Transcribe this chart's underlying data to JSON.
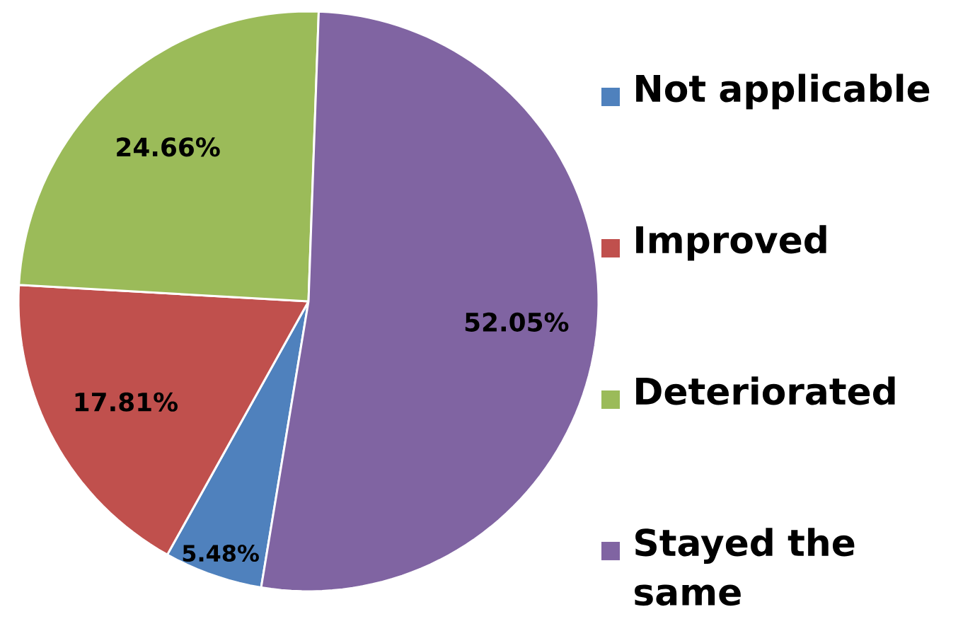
{
  "chart_data": {
    "type": "pie",
    "categories": [
      "Not applicable",
      "Improved",
      "Deteriorated",
      "Stayed the same"
    ],
    "values": [
      5.48,
      17.81,
      24.66,
      52.05
    ],
    "colors": [
      "#4f81bd",
      "#c0504d",
      "#9bbb59",
      "#8064a2"
    ],
    "value_labels": [
      "5.48%",
      "17.81%",
      "24.66%",
      "52.05%"
    ],
    "legend": "right"
  }
}
